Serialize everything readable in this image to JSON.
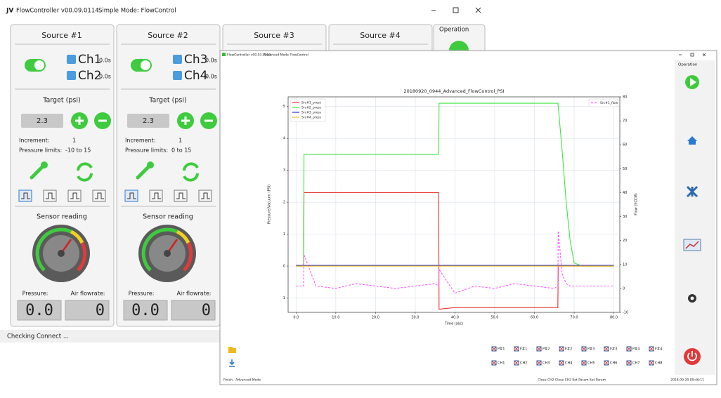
{
  "back_window": {
    "title": "FlowController v00.09.0114",
    "mode": "Simple Mode: FlowControl",
    "operation": "Operation",
    "status": "Checking Connect ...",
    "sources": [
      {
        "name": "Source #1",
        "ch_a": "Ch1",
        "ch_a_time": "0.0s",
        "ch_b": "Ch2",
        "ch_b_time": "0.0s",
        "target_label": "Target (psi)",
        "target": "2.3",
        "increment_label": "Increment:",
        "increment": "1",
        "limits_label": "Pressure limits:",
        "limits": "-10 to 15",
        "sensor_label": "Sensor reading",
        "pressure_label": "Pressure:",
        "flow_label": "Air flowrate:",
        "pressure": "0.0",
        "flow": "0"
      },
      {
        "name": "Source #2",
        "ch_a": "Ch3",
        "ch_a_time": "0.0s",
        "ch_b": "Ch4",
        "ch_b_time": "0.0s",
        "target_label": "Target (psi)",
        "target": "2.3",
        "increment_label": "Increment:",
        "increment": "1",
        "limits_label": "Pressure limits:",
        "limits": "0 to 15",
        "sensor_label": "Sensor reading",
        "pressure_label": "Pressure:",
        "flow_label": "Air flowrate:",
        "pressure": "0.0",
        "flow": "0"
      },
      {
        "name": "Source #3"
      },
      {
        "name": "Source #4"
      }
    ]
  },
  "front_window": {
    "title": "FlowController v00.03.0020",
    "mode": "Advanced Mode FlowControl",
    "operation": "Operation",
    "status": "Finish.. Advanced Mode",
    "status_right": "Close CH2 Close CH2 Set Param Set Param",
    "timestamp": "2018-09-20 09:46:11",
    "channels_row1": [
      "P#1",
      "F#1",
      "P#2",
      "F#2",
      "P#3",
      "F#3",
      "P#4",
      "F#4"
    ],
    "channels_row2": [
      "CH1",
      "CH2",
      "CH3",
      "CH4",
      "CH5",
      "CH6",
      "CH7",
      "CH8"
    ]
  },
  "chart_data": {
    "type": "line",
    "title": "20180920_0944_Advanced_FlowControl_PSI",
    "x_label": "Time (sec)",
    "y_label": "Pressure/Vacuum (PSI)",
    "y2_label": "Flow (SCCM)",
    "x": [
      0,
      1.9,
      2,
      5,
      10,
      15,
      20,
      25,
      30,
      35,
      35.9,
      36,
      40,
      45,
      50,
      55,
      60,
      65,
      65.9,
      66,
      67,
      68,
      69,
      70,
      72,
      75,
      80
    ],
    "series": [
      {
        "name": "Src#1_press",
        "color": "#e8312b",
        "values": [
          0,
          0,
          2.3,
          2.3,
          2.3,
          2.3,
          2.3,
          2.3,
          2.3,
          2.3,
          2.3,
          -1.35,
          -1.3,
          -1.3,
          -1.3,
          -1.3,
          -1.3,
          -1.3,
          -1.3,
          0,
          0,
          0,
          0,
          0,
          0,
          0,
          0
        ]
      },
      {
        "name": "Src#2_press",
        "color": "#3ee63e",
        "values": [
          0,
          0,
          3.5,
          3.5,
          3.5,
          3.5,
          3.5,
          3.5,
          3.5,
          3.5,
          3.5,
          5.1,
          5.1,
          5.1,
          5.1,
          5.1,
          5.1,
          5.1,
          5.1,
          5.0,
          3.6,
          2.0,
          0.8,
          0.1,
          0,
          0,
          0
        ]
      },
      {
        "name": "Src#3_press",
        "color": "#3030d0",
        "values": [
          0.02,
          0.02,
          0.02,
          0.02,
          0.02,
          0.02,
          0.02,
          0.02,
          0.02,
          0.02,
          0.02,
          0.02,
          0.02,
          0.02,
          0.02,
          0.02,
          0.02,
          0.02,
          0.02,
          0.02,
          0.02,
          0.02,
          0.02,
          0.02,
          0.02,
          0.02,
          0.02
        ]
      },
      {
        "name": "Src#4_press",
        "color": "#f0c020",
        "values": [
          0,
          0,
          0,
          0,
          0,
          0,
          0,
          0,
          0,
          0,
          0,
          0,
          0,
          0,
          0,
          0,
          0,
          0,
          0,
          0,
          0,
          0,
          0,
          0,
          0,
          0,
          0
        ]
      },
      {
        "name": "Src#1_flow",
        "color": "#ff55ff",
        "axis": "y2",
        "linestyle": "dashed",
        "values": [
          1,
          1,
          14,
          1,
          0,
          2,
          1,
          0,
          1,
          2,
          1,
          8,
          -2,
          1,
          0,
          2,
          1,
          0,
          1,
          24,
          6,
          2,
          1,
          1,
          1,
          1,
          1
        ]
      }
    ],
    "xlim": [
      -2,
      81.5
    ],
    "ylim": [
      -1.45,
      5.3
    ],
    "y2lim": [
      -10,
      80
    ],
    "xticks": [
      {
        "value": 0,
        "label": "0.0"
      },
      {
        "value": 10,
        "label": "10.0"
      },
      {
        "value": 20,
        "label": "20.0"
      },
      {
        "value": 30,
        "label": "30.0"
      },
      {
        "value": 40,
        "label": "40.0"
      },
      {
        "value": 50,
        "label": "50.0"
      },
      {
        "value": 60,
        "label": "60.0"
      },
      {
        "value": 70,
        "label": "70.0"
      },
      {
        "value": 80,
        "label": "80.0"
      }
    ],
    "yticks": [
      -1,
      0,
      1,
      2,
      3,
      4,
      5
    ],
    "y2ticks": [
      -10,
      0,
      10,
      20,
      30,
      40,
      50,
      60,
      70,
      80
    ],
    "grid": true
  }
}
